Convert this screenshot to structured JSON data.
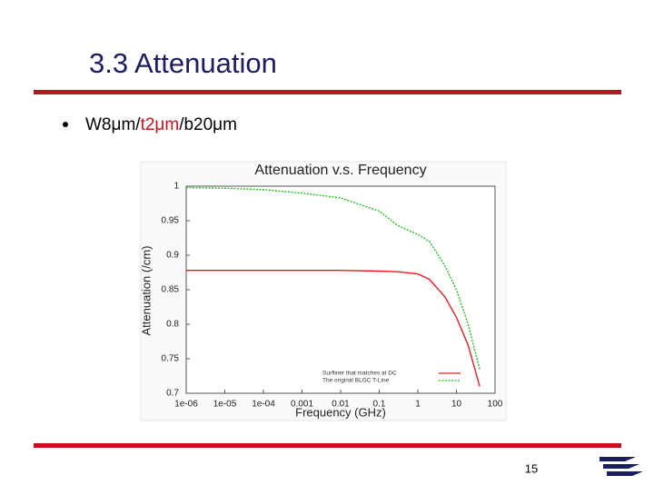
{
  "slide": {
    "title": "3.3 Attenuation",
    "bullet": [
      "W8μm/",
      "t2μm",
      "/b20μm"
    ],
    "page_number": "15"
  },
  "chart_data": {
    "type": "line",
    "title": "Attenuation v.s. Frequency",
    "x_label": "Frequency (GHz)",
    "y_label": "Attenuation (/cm)",
    "x": [
      1e-06,
      1e-05,
      0.0001,
      0.001,
      0.01,
      0.1,
      0.3,
      1,
      2,
      5,
      10,
      20,
      40
    ],
    "series": [
      {
        "name": "Surfliner that matches at DC",
        "color": "#e02020",
        "dash": false,
        "values": [
          0.878,
          0.878,
          0.878,
          0.878,
          0.878,
          0.877,
          0.876,
          0.873,
          0.865,
          0.84,
          0.81,
          0.77,
          0.71
        ]
      },
      {
        "name": "The original BLGC T-Line",
        "color": "#20c020",
        "dash": true,
        "values": [
          0.998,
          0.997,
          0.995,
          0.99,
          0.983,
          0.964,
          0.943,
          0.93,
          0.92,
          0.885,
          0.85,
          0.8,
          0.735
        ]
      }
    ],
    "xlim": [
      1e-06,
      100
    ],
    "x_log": true,
    "xticks": [
      {
        "value": 1e-06,
        "label": "1e-06"
      },
      {
        "value": 1e-05,
        "label": "1e-05"
      },
      {
        "value": 0.0001,
        "label": "1e-04"
      },
      0.001,
      0.01,
      0.1,
      1,
      10,
      100
    ],
    "ylim": [
      0.7,
      1
    ],
    "yticks": [
      1,
      0.95,
      0.9,
      0.85,
      0.8,
      0.75,
      0.7
    ],
    "grid": false,
    "legend": "lower right"
  }
}
